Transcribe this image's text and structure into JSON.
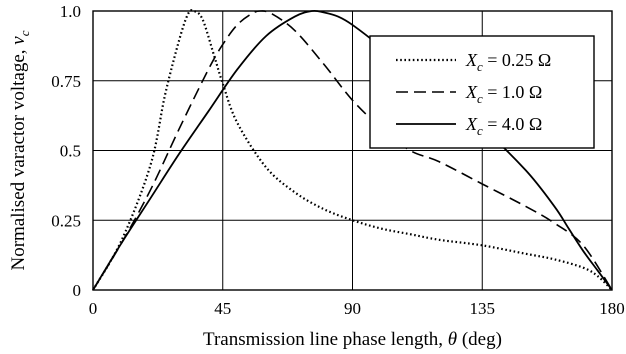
{
  "chart_data": {
    "type": "line",
    "xlabel": {
      "text": "Transmission line phase length, ",
      "var": "θ",
      "unit": " (deg)"
    },
    "ylabel": {
      "text": "Normalised varactor voltage, ",
      "var": "v",
      "sub": "c"
    },
    "xlim": [
      0,
      180
    ],
    "ylim": [
      0,
      1.0
    ],
    "xticks": [
      0,
      45,
      90,
      135,
      180
    ],
    "xtick_labels": [
      "0",
      "45",
      "90",
      "135",
      "180"
    ],
    "yticks": [
      0,
      0.25,
      0.5,
      0.75,
      1.0
    ],
    "ytick_labels": [
      "0",
      "0.25",
      "0.5",
      "0.75",
      "1.0"
    ],
    "grid": true,
    "legend": {
      "position": "top-right",
      "entries": [
        {
          "var": "X",
          "sub": "c",
          "rest": " = 0.25 Ω",
          "dash": "dotted"
        },
        {
          "var": "X",
          "sub": "c",
          "rest": " = 1.0 Ω",
          "dash": "dashed"
        },
        {
          "var": "X",
          "sub": "c",
          "rest": " = 4.0 Ω",
          "dash": "solid"
        }
      ]
    },
    "series": [
      {
        "dash": "dotted",
        "x": [
          0,
          10,
          20,
          25,
          30,
          33,
          35,
          38,
          42,
          45,
          50,
          60,
          70,
          80,
          90,
          100,
          110,
          120,
          135,
          150,
          160,
          170,
          175,
          180
        ],
        "y": [
          0,
          0.18,
          0.45,
          0.7,
          0.9,
          0.99,
          1.0,
          0.97,
          0.84,
          0.74,
          0.6,
          0.44,
          0.35,
          0.29,
          0.25,
          0.22,
          0.2,
          0.18,
          0.16,
          0.13,
          0.11,
          0.08,
          0.05,
          0
        ]
      },
      {
        "dash": "dashed",
        "x": [
          0,
          10,
          20,
          30,
          40,
          45,
          50,
          55,
          58,
          62,
          70,
          80,
          90,
          100,
          110,
          120,
          135,
          150,
          160,
          170,
          180
        ],
        "y": [
          0,
          0.17,
          0.36,
          0.58,
          0.79,
          0.88,
          0.95,
          0.99,
          1.0,
          0.99,
          0.93,
          0.81,
          0.68,
          0.58,
          0.5,
          0.46,
          0.38,
          0.3,
          0.24,
          0.16,
          0
        ]
      },
      {
        "dash": "solid",
        "x": [
          0,
          10,
          20,
          30,
          40,
          50,
          60,
          70,
          76,
          80,
          85,
          90,
          100,
          110,
          120,
          135,
          150,
          160,
          165,
          170,
          175,
          180
        ],
        "y": [
          0,
          0.17,
          0.33,
          0.49,
          0.64,
          0.79,
          0.91,
          0.98,
          1.0,
          0.995,
          0.98,
          0.95,
          0.87,
          0.78,
          0.69,
          0.58,
          0.43,
          0.3,
          0.22,
          0.14,
          0.07,
          0
        ]
      }
    ]
  }
}
